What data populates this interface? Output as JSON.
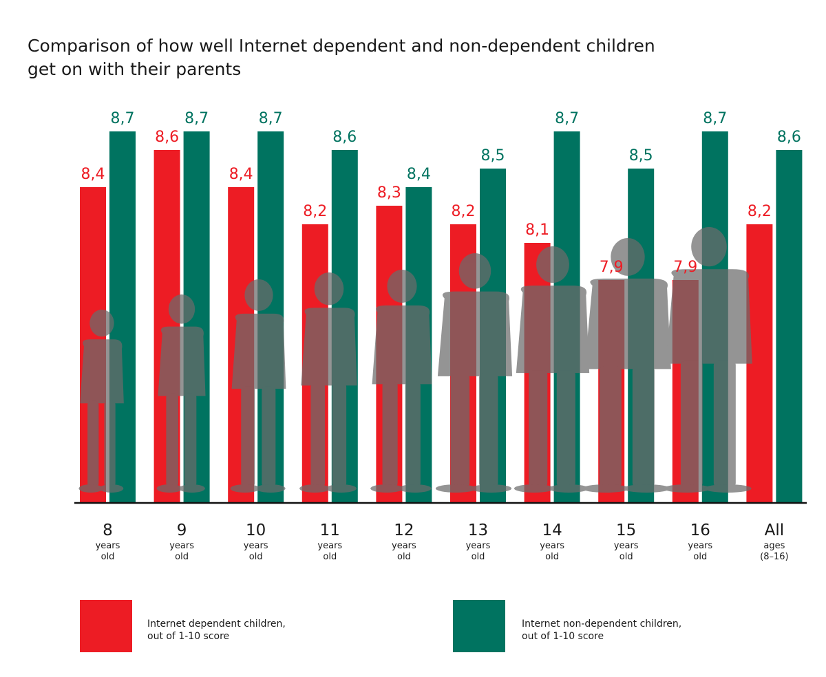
{
  "title_lines": [
    "Comparison of how well Internet dependent and non-dependent children",
    "get on with their parents"
  ],
  "colors": {
    "dependent": "#ed1c24",
    "non_dependent": "#007360",
    "silhouette": "#6b6b6b",
    "axis": "#111111"
  },
  "chart_data": {
    "type": "bar",
    "title": "Comparison of how well Internet dependent and non-dependent children get on with their parents",
    "categories": [
      {
        "main": "8",
        "sub1": "years",
        "sub2": "old"
      },
      {
        "main": "9",
        "sub1": "years",
        "sub2": "old"
      },
      {
        "main": "10",
        "sub1": "years",
        "sub2": "old"
      },
      {
        "main": "11",
        "sub1": "years",
        "sub2": "old"
      },
      {
        "main": "12",
        "sub1": "years",
        "sub2": "old"
      },
      {
        "main": "13",
        "sub1": "years",
        "sub2": "old"
      },
      {
        "main": "14",
        "sub1": "years",
        "sub2": "old"
      },
      {
        "main": "15",
        "sub1": "years",
        "sub2": "old"
      },
      {
        "main": "16",
        "sub1": "years",
        "sub2": "old"
      },
      {
        "main": "All",
        "sub1": "ages",
        "sub2": "(8–16)"
      }
    ],
    "series": [
      {
        "key": "dependent",
        "values": [
          8.4,
          8.6,
          8.4,
          8.2,
          8.3,
          8.2,
          8.1,
          7.9,
          7.9,
          8.2
        ],
        "labels": [
          "8,4",
          "8,6",
          "8,4",
          "8,2",
          "8,3",
          "8,2",
          "8,1",
          "7,9",
          "7,9",
          "8,2"
        ]
      },
      {
        "key": "non_dependent",
        "values": [
          8.7,
          8.7,
          8.7,
          8.6,
          8.4,
          8.5,
          8.7,
          8.5,
          8.7,
          8.6
        ],
        "labels": [
          "8,7",
          "8,7",
          "8,7",
          "8,6",
          "8,4",
          "8,5",
          "8,7",
          "8,5",
          "8,7",
          "8,6"
        ]
      }
    ],
    "ylim": [
      6.7,
      8.7
    ],
    "grid": false,
    "legend_position": "bottom"
  },
  "legend": {
    "dependent": [
      "Internet dependent children,",
      "out of 1-10 score"
    ],
    "non_dependent": [
      "Internet non-dependent children,",
      "out of 1-10 score"
    ]
  }
}
